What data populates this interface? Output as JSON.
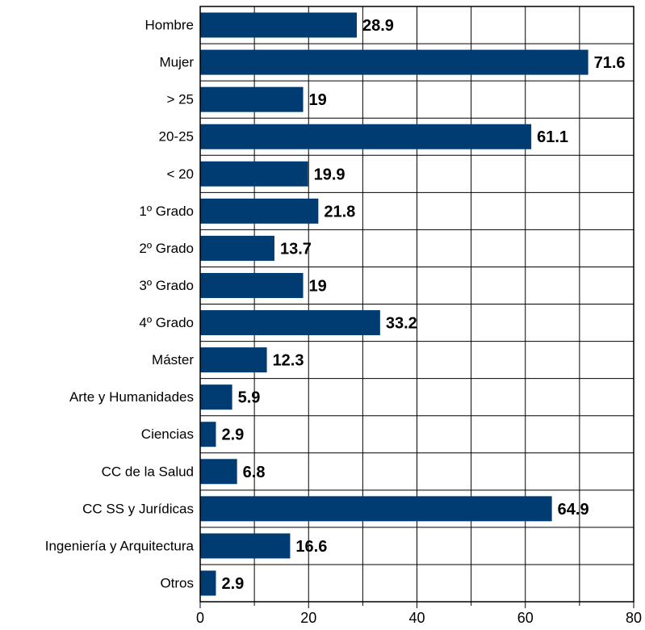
{
  "chart_data": {
    "type": "bar",
    "orientation": "horizontal",
    "categories": [
      "Hombre",
      "Mujer",
      "> 25",
      "20-25",
      "< 20",
      "1º Grado",
      "2º Grado",
      "3º Grado",
      "4º Grado",
      "Máster",
      "Arte y Humanidades",
      "Ciencias",
      "CC de la Salud",
      "CC SS y Jurídicas",
      "Ingeniería y Arquitectura",
      "Otros"
    ],
    "values": [
      28.9,
      71.6,
      19,
      61.1,
      19.9,
      21.8,
      13.7,
      19,
      33.2,
      12.3,
      5.9,
      2.9,
      6.8,
      64.9,
      16.6,
      2.9
    ],
    "data_labels": [
      "28.9",
      "71.6",
      "19",
      "61.1",
      "19.9",
      "21.8",
      "13.7",
      "19",
      "33.2",
      "12.3",
      "5.9",
      "2.9",
      "6.8",
      "64.9",
      "16.6",
      "2.9"
    ],
    "xlim": [
      0,
      80
    ],
    "xticks": [
      0,
      20,
      40,
      60,
      80
    ],
    "xtick_labels": [
      "0",
      "20",
      "40",
      "60",
      "80"
    ],
    "grid": true,
    "bar_color": "#003c71",
    "title": "",
    "xlabel": "",
    "ylabel": ""
  }
}
